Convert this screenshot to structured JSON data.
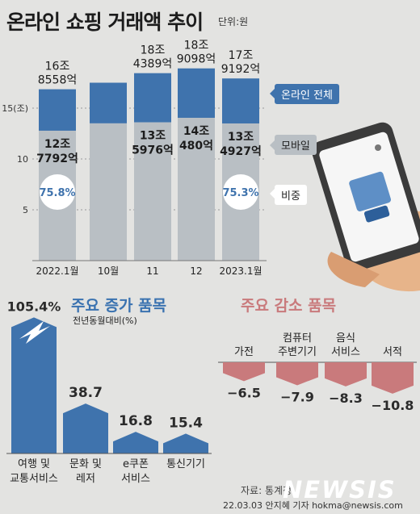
{
  "title": "온라인 쇼핑 거래액 추이",
  "unit": "단위:원",
  "legend": {
    "online_total": "온라인 전체",
    "mobile": "모바일",
    "share": "비중",
    "colors": {
      "online": "#3f73ad",
      "mobile": "#b9bfc4",
      "share_circle": "#ffffff",
      "share_text": "#3f73ad"
    }
  },
  "chart_data": [
    {
      "type": "bar",
      "categories": [
        "2022.1월",
        "10월",
        "11",
        "12",
        "2023.1월"
      ],
      "ylabel": "(조)",
      "yticks": [
        5,
        10,
        "15(조)"
      ],
      "ylim": [
        0,
        20
      ],
      "grid": true,
      "series": [
        {
          "name": "온라인 전체",
          "values": [
            16.8558,
            17.5,
            18.4389,
            18.9098,
            17.9192
          ]
        },
        {
          "name": "모바일",
          "values": [
            12.7792,
            13.5,
            13.5976,
            14.048,
            13.4927
          ]
        }
      ],
      "total_labels": [
        [
          "16조",
          "8558억"
        ],
        null,
        [
          "18조",
          "4389억"
        ],
        [
          "18조",
          "9098억"
        ],
        [
          "17조",
          "9192억"
        ]
      ],
      "mobile_labels": [
        [
          "12조",
          "7792억"
        ],
        null,
        [
          "13조",
          "5976억"
        ],
        [
          "14조",
          "480억"
        ],
        [
          "13조",
          "4927억"
        ]
      ],
      "share_labels": [
        "75.8%",
        null,
        null,
        null,
        "75.3%"
      ]
    },
    {
      "type": "bar",
      "title": "주요 증가 품목",
      "subtitle": "전년동월대비(%)",
      "categories": [
        [
          "여행 및",
          "교통서비스"
        ],
        [
          "문화 및",
          "레저"
        ],
        [
          "e쿠폰",
          "서비스"
        ],
        [
          "통신기기"
        ]
      ],
      "values": [
        105.4,
        38.7,
        16.8,
        15.4
      ],
      "value_labels": [
        "105.4%",
        "38.7",
        "16.8",
        "15.4"
      ],
      "color": "#3f73ad"
    },
    {
      "type": "bar",
      "title": "주요 감소 품목",
      "categories": [
        [
          "가전"
        ],
        [
          "컴퓨터",
          "주변기기"
        ],
        [
          "음식",
          "서비스"
        ],
        [
          "서적"
        ]
      ],
      "values": [
        -6.5,
        -7.9,
        -8.3,
        -10.8
      ],
      "value_labels": [
        "−6.5",
        "−7.9",
        "−8.3",
        "−10.8"
      ],
      "color": "#c97a7c"
    }
  ],
  "source": "자료: 통계청",
  "byline": "22.03.03 안지혜 기자 hokma@newsis.com",
  "logo": "NEWSIS"
}
